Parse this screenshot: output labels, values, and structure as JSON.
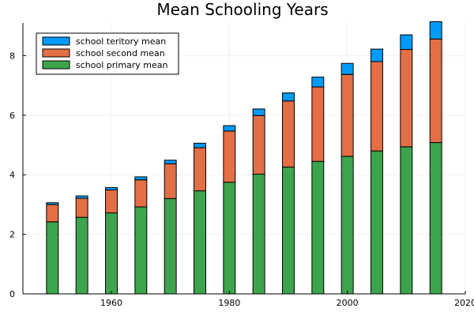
{
  "chart_data": {
    "type": "bar",
    "stacked": true,
    "title": "Mean Schooling Years",
    "xlabel": "",
    "ylabel": "",
    "x": [
      1950,
      1955,
      1960,
      1965,
      1970,
      1975,
      1980,
      1985,
      1990,
      1995,
      2000,
      2005,
      2010,
      2015
    ],
    "xlim": [
      1945,
      2020
    ],
    "ylim": [
      0,
      9.1
    ],
    "xticks": [
      1960,
      1980,
      2000,
      2020
    ],
    "yticks": [
      0,
      2,
      4,
      6,
      8
    ],
    "grid": true,
    "legend_position": "top-left",
    "series": [
      {
        "name": "school primary mean",
        "color": "#3da44d",
        "values": [
          2.42,
          2.57,
          2.72,
          2.92,
          3.2,
          3.46,
          3.75,
          4.02,
          4.26,
          4.45,
          4.62,
          4.8,
          4.94,
          5.08
        ]
      },
      {
        "name": "school second mean",
        "color": "#e26f46",
        "values": [
          0.58,
          0.64,
          0.77,
          0.91,
          1.17,
          1.45,
          1.72,
          1.97,
          2.22,
          2.5,
          2.75,
          3.0,
          3.27,
          3.48
        ]
      },
      {
        "name": "school teritory mean",
        "color": "#009af9",
        "values": [
          0.06,
          0.08,
          0.08,
          0.1,
          0.12,
          0.15,
          0.18,
          0.22,
          0.27,
          0.33,
          0.37,
          0.42,
          0.49,
          0.58
        ]
      }
    ]
  }
}
